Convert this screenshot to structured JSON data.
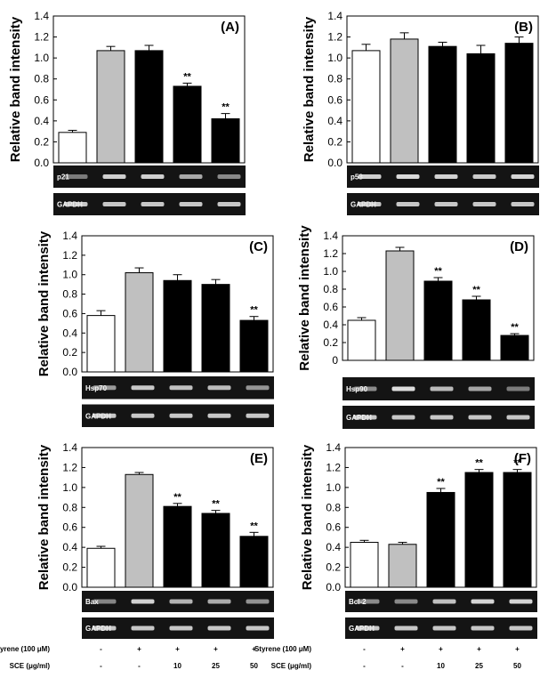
{
  "colors": {
    "control": "#ffffff",
    "styrene": "#c0c0c0",
    "sce": "#000000",
    "gel": "#141414",
    "band": "#e6e6e6"
  },
  "chart_data": [
    {
      "id": "A",
      "type": "bar",
      "panel_label": "(A)",
      "ylabel": "Relative band intensity",
      "ylim": [
        0,
        1.4
      ],
      "yticks": [
        "0.0",
        "0.2",
        "0.4",
        "0.6",
        "0.8",
        "1.0",
        "1.2",
        "1.4"
      ],
      "values": [
        0.29,
        1.07,
        1.07,
        0.73,
        0.42
      ],
      "errors": [
        0.02,
        0.04,
        0.05,
        0.03,
        0.05
      ],
      "significance": [
        "",
        "",
        "",
        "**",
        "**"
      ],
      "gel_labels": [
        "p21",
        "GAPDH"
      ]
    },
    {
      "id": "B",
      "type": "bar",
      "panel_label": "(B)",
      "ylabel": "Relative band intensity",
      "ylim": [
        0,
        1.4
      ],
      "yticks": [
        "0.0",
        "0.2",
        "0.4",
        "0.6",
        "0.8",
        "1.0",
        "1.2",
        "1.4"
      ],
      "values": [
        1.07,
        1.18,
        1.11,
        1.04,
        1.14
      ],
      "errors": [
        0.06,
        0.06,
        0.04,
        0.08,
        0.06
      ],
      "significance": [
        "",
        "",
        "",
        "",
        ""
      ],
      "gel_labels": [
        "p53",
        "GAPDH"
      ]
    },
    {
      "id": "C",
      "type": "bar",
      "panel_label": "(C)",
      "ylabel": "Relative band intensity",
      "ylim": [
        0,
        1.4
      ],
      "yticks": [
        "0.0",
        "0.2",
        "0.4",
        "0.6",
        "0.8",
        "1.0",
        "1.2",
        "1.4"
      ],
      "values": [
        0.58,
        1.02,
        0.94,
        0.9,
        0.53
      ],
      "errors": [
        0.05,
        0.05,
        0.06,
        0.05,
        0.04
      ],
      "significance": [
        "",
        "",
        "",
        "",
        "**"
      ],
      "gel_labels": [
        "Hsp70",
        "GAPDH"
      ]
    },
    {
      "id": "D",
      "type": "bar",
      "panel_label": "(D)",
      "ylabel": "Relative band intensity",
      "ylim": [
        0,
        1.4
      ],
      "yticks": [
        "0",
        "0.2",
        "0.4",
        "0.6",
        "0.8",
        "1.0",
        "1.2",
        "1.4"
      ],
      "values": [
        0.45,
        1.23,
        0.89,
        0.68,
        0.28
      ],
      "errors": [
        0.03,
        0.04,
        0.04,
        0.04,
        0.02
      ],
      "significance": [
        "",
        "",
        "**",
        "**",
        "**"
      ],
      "gel_labels": [
        "Hsp90",
        "GAPDH"
      ]
    },
    {
      "id": "E",
      "type": "bar",
      "panel_label": "(E)",
      "ylabel": "Relative band intensity",
      "ylim": [
        0,
        1.4
      ],
      "yticks": [
        "0.0",
        "0.2",
        "0.4",
        "0.6",
        "0.8",
        "1.0",
        "1.2",
        "1.4"
      ],
      "values": [
        0.39,
        1.13,
        0.81,
        0.74,
        0.51
      ],
      "errors": [
        0.02,
        0.02,
        0.03,
        0.03,
        0.04
      ],
      "significance": [
        "",
        "",
        "**",
        "**",
        "**"
      ],
      "gel_labels": [
        "Bax",
        "GAPDH"
      ]
    },
    {
      "id": "F",
      "type": "bar",
      "panel_label": "(F)",
      "ylabel": "Relative band intensity",
      "ylim": [
        0,
        1.4
      ],
      "yticks": [
        "0.0",
        "0.2",
        "0.4",
        "0.6",
        "0.8",
        "1.0",
        "1.2",
        "1.4"
      ],
      "values": [
        0.45,
        0.43,
        0.95,
        1.15,
        1.15
      ],
      "errors": [
        0.02,
        0.02,
        0.04,
        0.03,
        0.03
      ],
      "significance": [
        "",
        "",
        "**",
        "**",
        "**"
      ],
      "gel_labels": [
        "Bcl-2",
        "GAPDH"
      ]
    }
  ],
  "conditions": [
    {
      "label": "Styrene (100 μM)",
      "values": [
        "-",
        "+",
        "+",
        "+",
        "+"
      ]
    },
    {
      "label": "SCE (μg/ml)",
      "values": [
        "-",
        "-",
        "10",
        "25",
        "50"
      ]
    }
  ]
}
